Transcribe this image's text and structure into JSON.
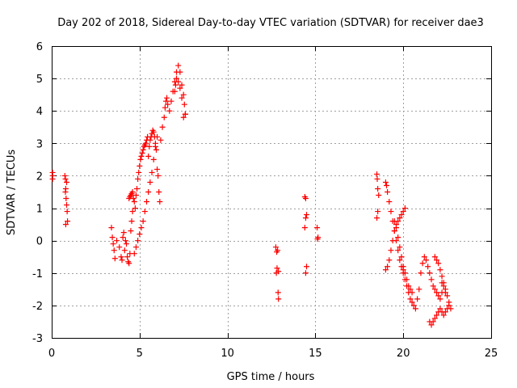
{
  "chart_data": {
    "type": "scatter",
    "title": "Day 202 of 2018, Sidereal Day-to-day VTEC variation (SDTVAR) for receiver dae3",
    "xlabel": "GPS time / hours",
    "ylabel": "SDTVAR / TECUs",
    "xlim": [
      0,
      25
    ],
    "ylim": [
      -3,
      6
    ],
    "xticks": [
      0,
      5,
      10,
      15,
      20,
      25
    ],
    "yticks": [
      -3,
      -2,
      -1,
      0,
      1,
      2,
      3,
      4,
      5,
      6
    ],
    "xtick_labels": [
      "0",
      "5",
      "10",
      "15",
      "20",
      "25"
    ],
    "ytick_labels": [
      "-3",
      "-2",
      "-1",
      "0",
      "1",
      "2",
      "3",
      "4",
      "5",
      "6"
    ],
    "grid": true,
    "marker": "+",
    "color": "#ff0000",
    "series": [
      {
        "name": "SDTVAR",
        "x": [
          0.05,
          0.05,
          0.05,
          0.75,
          0.78,
          0.8,
          0.82,
          0.85,
          0.88,
          0.9,
          0.85,
          0.8,
          0.78,
          3.4,
          3.45,
          3.5,
          3.55,
          3.6,
          3.7,
          3.85,
          3.95,
          4.0,
          4.05,
          4.1,
          4.15,
          4.2,
          4.25,
          4.3,
          4.35,
          4.4,
          4.45,
          4.5,
          4.55,
          4.6,
          4.4,
          4.45,
          4.5,
          4.55,
          4.6,
          4.65,
          4.7,
          4.75,
          4.8,
          4.85,
          4.9,
          4.95,
          5.0,
          5.05,
          5.1,
          5.15,
          5.2,
          5.25,
          5.3,
          5.35,
          5.4,
          5.45,
          5.5,
          5.55,
          5.6,
          5.65,
          5.7,
          5.75,
          5.8,
          5.85,
          5.9,
          5.95,
          6.0,
          6.05,
          6.1,
          6.15,
          4.7,
          4.8,
          4.9,
          5.0,
          5.1,
          5.2,
          5.3,
          5.4,
          5.5,
          5.6,
          5.7,
          5.8,
          5.9,
          6.0,
          6.2,
          6.3,
          6.4,
          6.45,
          6.5,
          6.55,
          6.6,
          6.7,
          6.8,
          6.9,
          7.0,
          7.1,
          7.2,
          7.3,
          7.4,
          7.5,
          7.55,
          7.6,
          7.2,
          7.3,
          7.4,
          7.5,
          7.6,
          7.0,
          7.05,
          7.1,
          12.75,
          12.8,
          12.85,
          12.9,
          12.78,
          12.82,
          12.88,
          12.9,
          14.4,
          14.45,
          14.5,
          14.45,
          14.4,
          14.5,
          14.45,
          15.1,
          15.15,
          15.12,
          18.5,
          18.52,
          18.55,
          18.6,
          18.55,
          18.5,
          19.0,
          19.05,
          19.1,
          19.2,
          19.3,
          19.4,
          19.5,
          19.6,
          19.7,
          19.8,
          19.9,
          20.0,
          19.0,
          19.1,
          19.2,
          19.3,
          19.4,
          19.5,
          19.6,
          19.7,
          19.8,
          19.9,
          20.0,
          20.1,
          20.0,
          20.1,
          20.2,
          20.3,
          20.4,
          20.5,
          20.6,
          20.7,
          20.8,
          20.9,
          21.0,
          21.1,
          19.5,
          19.6,
          19.7,
          19.8,
          19.9,
          20.0,
          20.1,
          20.2,
          20.3,
          20.4,
          20.5,
          21.2,
          21.3,
          21.4,
          21.5,
          21.6,
          21.7,
          21.8,
          21.9,
          22.0,
          22.1,
          22.2,
          22.3,
          21.5,
          21.6,
          21.7,
          21.8,
          21.9,
          22.0,
          22.1,
          22.2,
          22.3,
          22.4,
          22.5,
          22.6,
          21.8,
          21.9,
          22.0,
          22.1,
          22.2,
          22.3,
          22.4,
          22.5,
          22.6,
          22.7,
          22.2,
          22.4
        ],
        "y": [
          2.1,
          2.0,
          1.9,
          2.0,
          1.9,
          1.6,
          1.3,
          1.1,
          0.9,
          0.6,
          1.8,
          0.5,
          1.5,
          0.4,
          0.1,
          -0.1,
          -0.3,
          -0.55,
          0.0,
          -0.2,
          -0.5,
          -0.6,
          0.1,
          0.25,
          -0.3,
          0.0,
          -0.1,
          -0.5,
          -0.65,
          -0.7,
          -0.4,
          0.3,
          0.6,
          0.9,
          1.3,
          1.35,
          1.4,
          1.45,
          1.5,
          1.3,
          1.2,
          1.0,
          1.4,
          1.6,
          1.9,
          2.1,
          2.3,
          2.5,
          2.6,
          2.7,
          2.8,
          2.9,
          2.95,
          3.0,
          3.1,
          3.2,
          2.6,
          2.9,
          3.1,
          3.2,
          3.3,
          3.4,
          3.35,
          3.2,
          3.0,
          2.8,
          2.2,
          2.0,
          1.5,
          1.2,
          -0.4,
          -0.2,
          0.0,
          0.2,
          0.4,
          0.6,
          0.9,
          1.2,
          1.5,
          1.8,
          2.1,
          2.5,
          2.9,
          3.2,
          3.1,
          3.5,
          3.8,
          4.1,
          4.3,
          4.4,
          4.2,
          4.0,
          4.3,
          4.6,
          4.9,
          5.2,
          5.4,
          5.2,
          4.8,
          4.5,
          4.2,
          3.9,
          4.9,
          4.7,
          4.4,
          3.8,
          3.9,
          4.6,
          4.8,
          5.0,
          -0.2,
          -0.35,
          -0.3,
          -0.95,
          -1.0,
          -0.85,
          -1.6,
          -1.8,
          1.35,
          1.3,
          0.8,
          0.7,
          0.4,
          -0.8,
          -1.0,
          0.4,
          0.1,
          0.05,
          2.05,
          1.9,
          1.6,
          1.4,
          0.9,
          0.7,
          1.8,
          1.7,
          1.5,
          1.2,
          0.9,
          0.6,
          0.3,
          0.0,
          -0.3,
          -0.6,
          -0.8,
          -0.9,
          -0.9,
          -0.8,
          -0.6,
          -0.3,
          0.0,
          0.3,
          0.5,
          0.6,
          0.7,
          0.8,
          0.9,
          1.0,
          -1.0,
          -1.2,
          -1.4,
          -1.6,
          -1.8,
          -1.9,
          -2.0,
          -2.1,
          -1.8,
          -1.5,
          -1.0,
          -0.7,
          0.6,
          0.4,
          0.1,
          -0.2,
          -0.5,
          -0.8,
          -1.0,
          -1.2,
          -1.4,
          -1.5,
          -1.6,
          -0.5,
          -0.6,
          -0.8,
          -1.0,
          -1.2,
          -1.4,
          -1.5,
          -1.6,
          -1.7,
          -1.8,
          -1.6,
          -1.4,
          -2.5,
          -2.6,
          -2.5,
          -2.4,
          -2.3,
          -2.2,
          -2.1,
          -2.2,
          -2.3,
          -2.2,
          -2.1,
          -2.0,
          -0.5,
          -0.6,
          -0.7,
          -0.9,
          -1.1,
          -1.3,
          -1.5,
          -1.7,
          -1.9,
          -2.1,
          -1.3,
          -1.6
        ]
      }
    ]
  }
}
